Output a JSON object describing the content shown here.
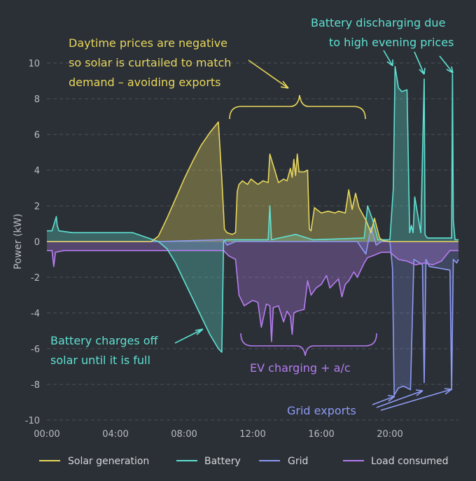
{
  "chart_data": {
    "type": "area",
    "ylabel": "Power (kW)",
    "ylim": [
      -10,
      10
    ],
    "yticks": [
      "10",
      "8",
      "6",
      "4",
      "2",
      "0",
      "-2",
      "-4",
      "-6",
      "-8",
      "-10"
    ],
    "xlim": [
      0,
      24
    ],
    "xticks": [
      "00:00",
      "04:00",
      "08:00",
      "12:00",
      "16:00",
      "20:00"
    ],
    "grid": "horizontal dashed",
    "legend_position": "bottom",
    "series": [
      {
        "name": "Solar generation",
        "color": "#e8d65c",
        "x": [
          0,
          6.1,
          6.5,
          7.0,
          7.5,
          8.0,
          8.5,
          9.0,
          9.5,
          10.0,
          10.2,
          10.35,
          10.5,
          10.8,
          11.0,
          11.1,
          11.2,
          11.4,
          11.7,
          11.9,
          12.3,
          12.6,
          12.9,
          13.0,
          13.5,
          13.8,
          14.0,
          14.2,
          14.3,
          14.4,
          14.5,
          14.6,
          14.7,
          15.0,
          15.2,
          15.3,
          15.4,
          15.6,
          16.0,
          16.4,
          16.8,
          17.0,
          17.4,
          17.6,
          17.8,
          18.0,
          18.2,
          18.6,
          18.9,
          19.1,
          19.4,
          19.6,
          20.0,
          24.0
        ],
        "y": [
          0,
          0,
          0.3,
          1.3,
          2.4,
          3.5,
          4.5,
          5.4,
          6.1,
          6.7,
          3.5,
          0.7,
          0.5,
          0.4,
          0.5,
          2.8,
          3.2,
          3.4,
          3.2,
          3.5,
          3.2,
          3.4,
          3.3,
          4.9,
          3.3,
          3.5,
          3.4,
          4.1,
          3.6,
          4.6,
          3.7,
          4.9,
          3.9,
          3.9,
          4.0,
          0.7,
          0.6,
          1.9,
          1.6,
          1.7,
          1.6,
          1.7,
          1.6,
          2.9,
          1.8,
          2.7,
          1.9,
          1.2,
          0.5,
          1.3,
          0.2,
          0.05,
          0,
          0
        ]
      },
      {
        "name": "Battery",
        "color": "#5fe0d2",
        "x": [
          0,
          0.3,
          0.55,
          0.6,
          0.7,
          1.5,
          3.0,
          5.0,
          6.5,
          7.0,
          7.5,
          8.0,
          8.5,
          9.0,
          9.5,
          10.0,
          10.2,
          10.3,
          10.4,
          11.5,
          12.9,
          13.0,
          13.1,
          14.5,
          15.5,
          18.5,
          18.7,
          19.0,
          19.3,
          19.6,
          20.0,
          20.2,
          20.3,
          20.5,
          20.7,
          21.0,
          21.15,
          21.25,
          21.35,
          21.45,
          21.8,
          22.0,
          22.05,
          22.1,
          22.2,
          23.6,
          23.65,
          23.7,
          23.8,
          24.0
        ],
        "y": [
          0.6,
          0.6,
          1.4,
          0.9,
          0.6,
          0.5,
          0.5,
          0.5,
          0,
          -0.4,
          -1.2,
          -2.2,
          -3.2,
          -4.2,
          -5.2,
          -6.0,
          -6.2,
          0,
          0.1,
          0.1,
          0.1,
          2.0,
          0.1,
          0.4,
          0.1,
          0.2,
          2.0,
          1.2,
          0.1,
          0.1,
          0.1,
          3.0,
          9.8,
          8.6,
          8.4,
          8.5,
          0.5,
          0.9,
          0.5,
          2.5,
          0.5,
          9.1,
          0.4,
          0.3,
          0.2,
          0.2,
          9.4,
          1.2,
          0.1,
          0.1
        ]
      },
      {
        "name": "Grid",
        "color": "#8d9bf5",
        "x": [
          0,
          6.5,
          10.3,
          10.5,
          11.0,
          18.1,
          18.3,
          18.6,
          18.9,
          19.2,
          19.5,
          20.0,
          20.15,
          20.25,
          20.5,
          20.8,
          21.2,
          21.4,
          21.9,
          22.0,
          22.1,
          22.3,
          23.5,
          23.6,
          23.7,
          23.9,
          24.0
        ],
        "y": [
          0,
          0,
          0.1,
          -0.2,
          0,
          0,
          -0.3,
          -0.7,
          0.8,
          -0.2,
          0,
          0,
          -1.5,
          -8.6,
          -8.2,
          -8.1,
          -8.3,
          -1.0,
          -1.3,
          -7.9,
          -1.0,
          -1.4,
          -1.6,
          -8.3,
          -1.0,
          -1.2,
          -1.0
        ]
      },
      {
        "name": "Load consumed",
        "color": "#b57cf0",
        "x": [
          0,
          0.3,
          0.4,
          0.5,
          1.0,
          6.0,
          10.3,
          10.6,
          11.0,
          11.2,
          11.5,
          12.0,
          12.3,
          12.5,
          12.8,
          13.0,
          13.1,
          13.2,
          13.5,
          13.8,
          14.0,
          14.2,
          14.3,
          14.4,
          14.6,
          15.0,
          15.2,
          15.4,
          15.7,
          16.0,
          16.3,
          16.5,
          16.8,
          17.0,
          17.2,
          17.4,
          17.6,
          17.9,
          18.1,
          18.3,
          18.5,
          18.7,
          19.0,
          19.5,
          20.0,
          20.5,
          21.0,
          21.5,
          22.0,
          22.5,
          23.0,
          23.5,
          24.0
        ],
        "y": [
          -0.5,
          -0.5,
          -1.4,
          -0.6,
          -0.5,
          -0.5,
          -0.5,
          -0.8,
          -1.0,
          -3.0,
          -3.6,
          -3.3,
          -3.4,
          -4.8,
          -3.5,
          -3.6,
          -5.6,
          -3.7,
          -3.6,
          -4.5,
          -3.9,
          -4.2,
          -5.2,
          -4.0,
          -3.9,
          -3.8,
          -2.2,
          -3.0,
          -2.6,
          -2.4,
          -1.9,
          -2.6,
          -2.3,
          -2.1,
          -3.1,
          -2.4,
          -2.2,
          -1.7,
          -2.0,
          -1.6,
          -1.2,
          -0.9,
          -0.8,
          -0.6,
          -0.6,
          -1.0,
          -1.1,
          -1.3,
          -1.2,
          -1.3,
          -1.1,
          -0.5,
          -0.5
        ]
      }
    ],
    "annotations": {
      "solar_curtailed": [
        "Daytime prices are negative",
        "so solar is curtailed to match",
        "demand – avoiding exports"
      ],
      "battery_discharging": [
        "Battery discharging due",
        "to high evening prices"
      ],
      "battery_charges": [
        "Battery charges off",
        "solar until it is full"
      ],
      "ev_charging": "EV charging + a/c",
      "grid_exports": "Grid exports"
    }
  }
}
